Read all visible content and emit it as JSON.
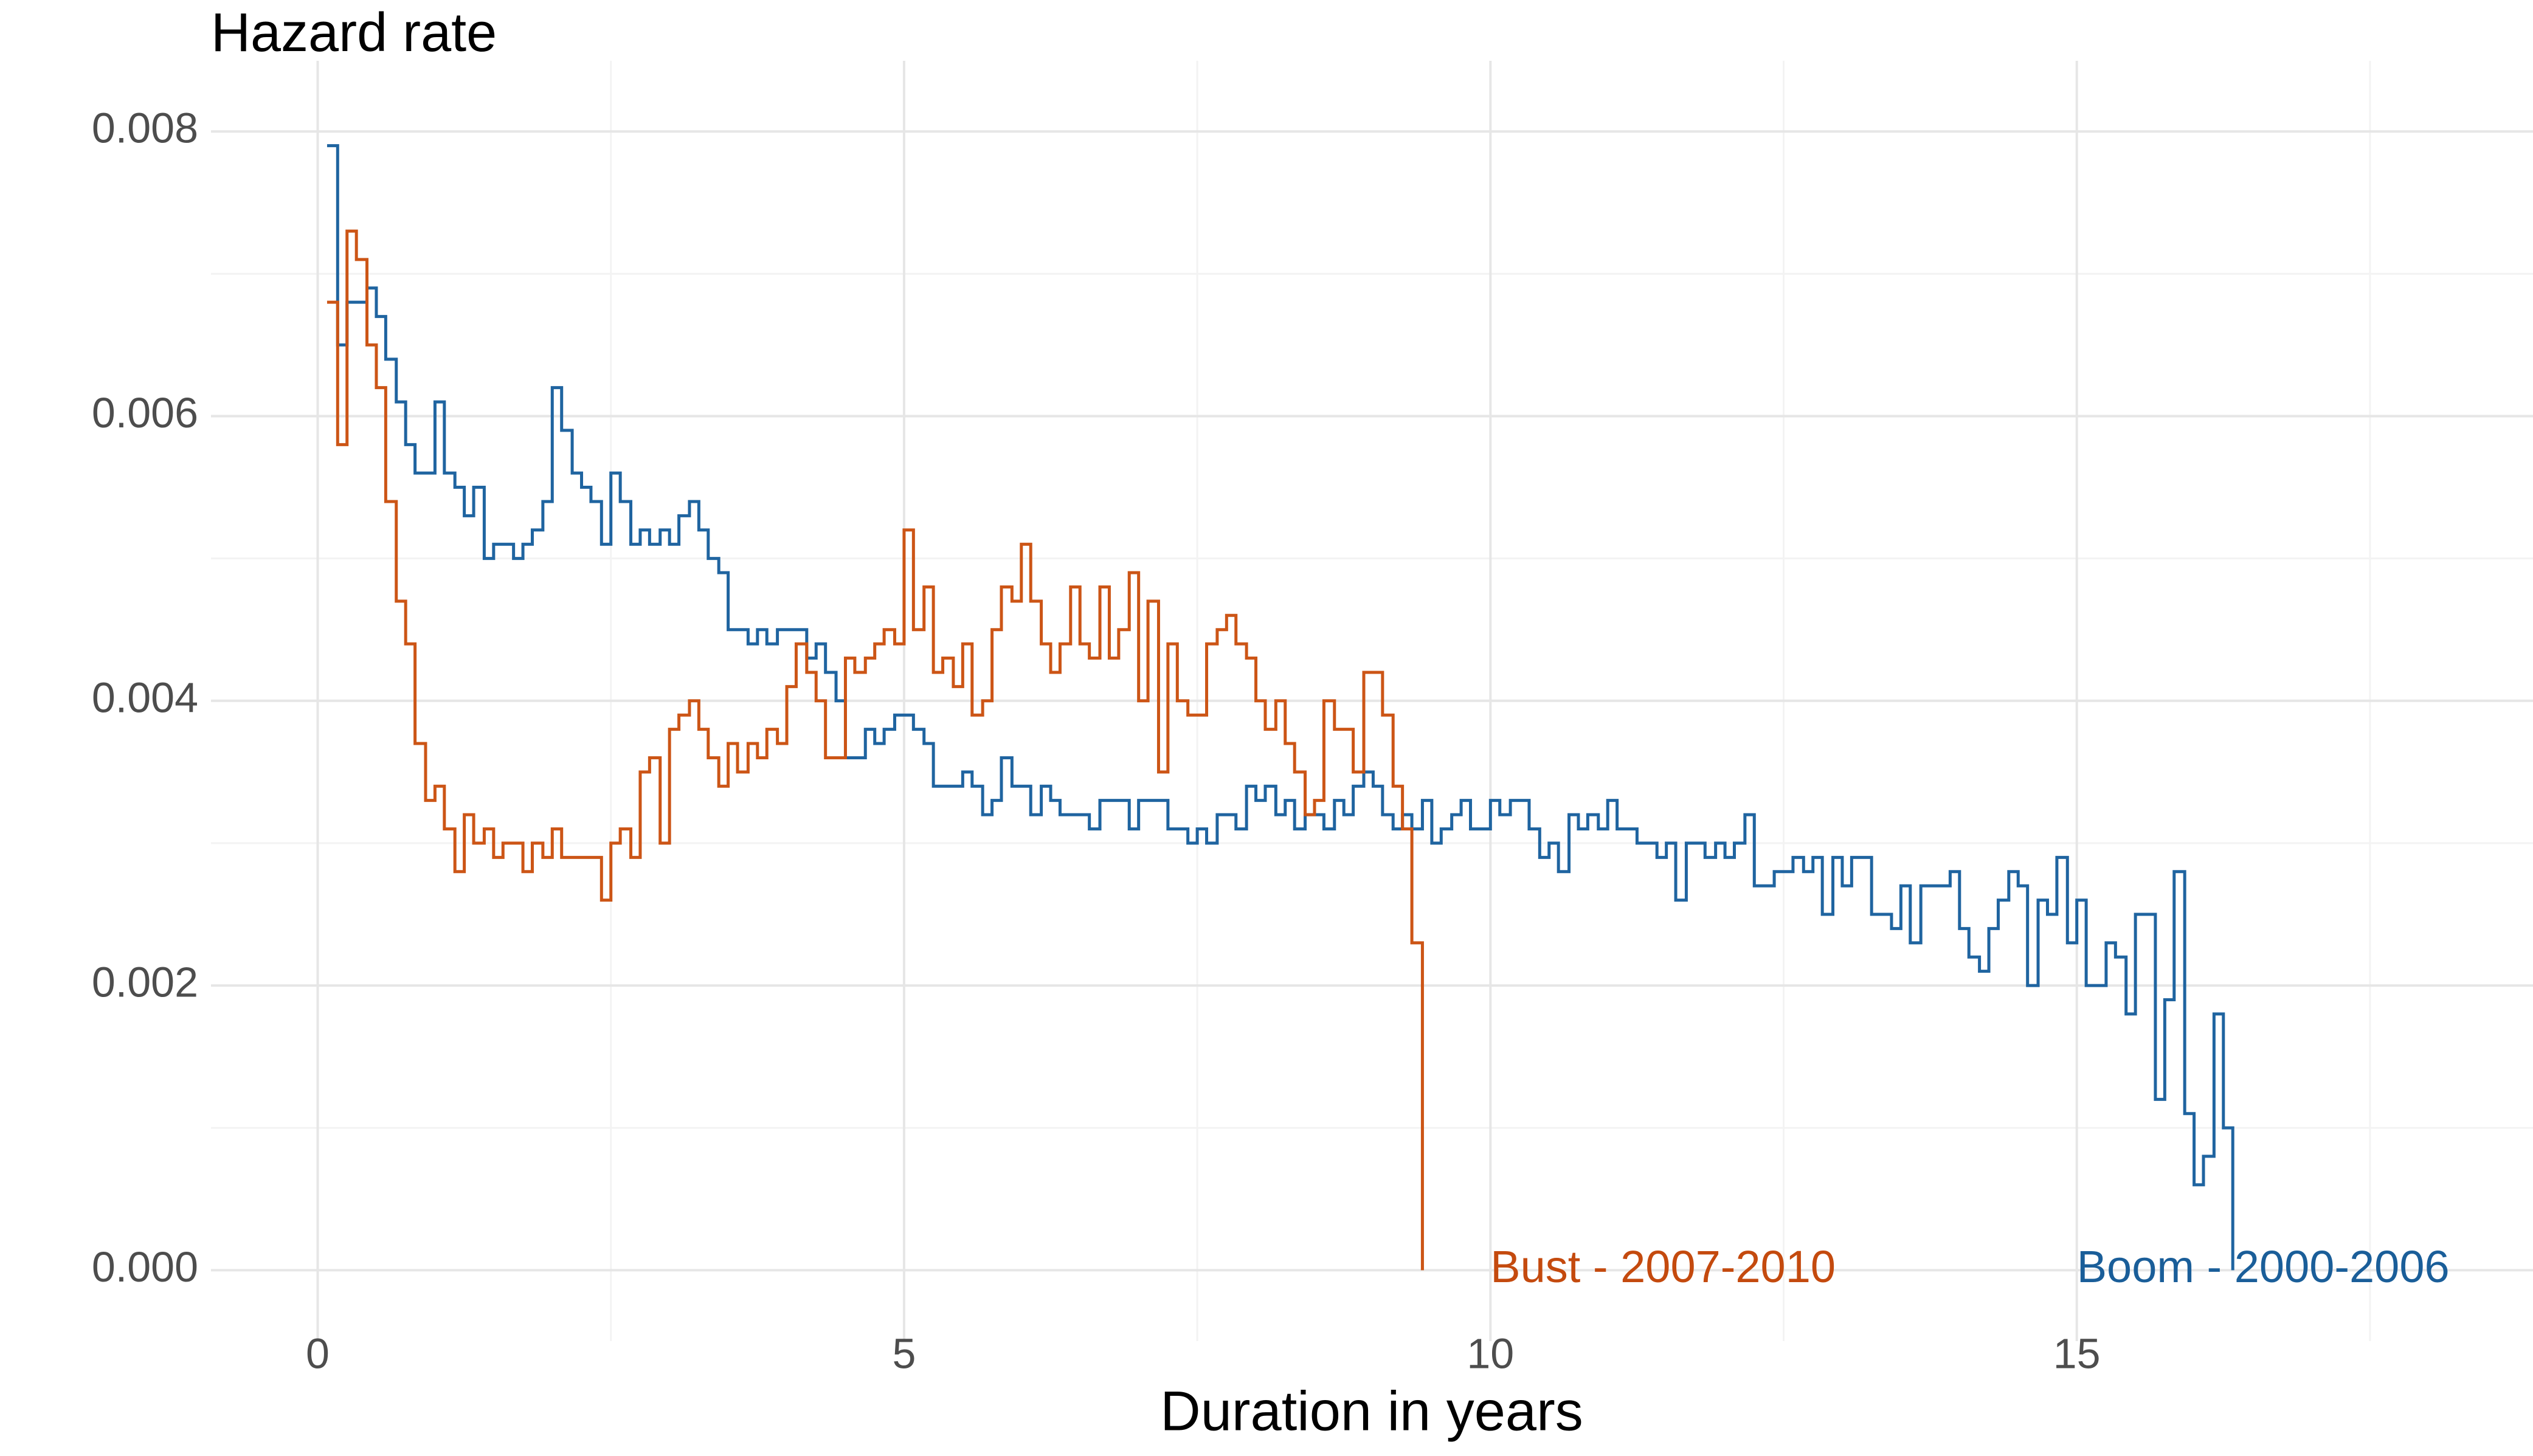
{
  "chart_data": {
    "type": "step",
    "title": "Hazard rate",
    "x_label": "Duration in years",
    "xlim": [
      -0.91,
      18.89
    ],
    "ylim": [
      -0.00037,
      0.00824
    ],
    "xticks": [
      0,
      5,
      10,
      15
    ],
    "yticks": [
      {
        "value": 0,
        "label": "0.000"
      },
      {
        "value": 0.002,
        "label": "0.002"
      },
      {
        "value": 0.004,
        "label": "0.004"
      },
      {
        "value": 0.006,
        "label": "0.006"
      },
      {
        "value": 0.008,
        "label": "0.008"
      }
    ],
    "grid": true,
    "x": [
      0.08,
      0.17,
      0.25,
      0.33,
      0.42,
      0.5,
      0.58,
      0.67,
      0.75,
      0.83,
      0.92,
      1,
      1.08,
      1.17,
      1.25,
      1.33,
      1.42,
      1.5,
      1.58,
      1.67,
      1.75,
      1.83,
      1.92,
      2,
      2.08,
      2.17,
      2.25,
      2.33,
      2.42,
      2.5,
      2.58,
      2.67,
      2.75,
      2.83,
      2.92,
      3,
      3.08,
      3.17,
      3.25,
      3.33,
      3.42,
      3.5,
      3.58,
      3.67,
      3.75,
      3.83,
      3.92,
      4,
      4.08,
      4.17,
      4.25,
      4.33,
      4.42,
      4.5,
      4.58,
      4.67,
      4.75,
      4.83,
      4.92,
      5,
      5.08,
      5.17,
      5.25,
      5.33,
      5.42,
      5.5,
      5.58,
      5.67,
      5.75,
      5.83,
      5.92,
      6,
      6.08,
      6.17,
      6.25,
      6.33,
      6.42,
      6.5,
      6.58,
      6.67,
      6.75,
      6.83,
      6.92,
      7,
      7.08,
      7.17,
      7.25,
      7.33,
      7.42,
      7.5,
      7.58,
      7.67,
      7.75,
      7.83,
      7.92,
      8,
      8.08,
      8.17,
      8.25,
      8.33,
      8.42,
      8.5,
      8.58,
      8.67,
      8.75,
      8.83,
      8.92,
      9,
      9.08,
      9.17,
      9.25,
      9.33,
      9.42,
      9.5,
      9.58,
      9.67,
      9.75,
      9.83,
      9.92,
      10,
      10.08,
      10.17,
      10.25,
      10.33,
      10.42,
      10.5,
      10.58,
      10.67,
      10.75,
      10.83,
      10.92,
      11,
      11.08,
      11.17,
      11.25,
      11.33,
      11.42,
      11.5,
      11.58,
      11.67,
      11.75,
      11.83,
      11.92,
      12,
      12.08,
      12.17,
      12.25,
      12.33,
      12.42,
      12.5,
      12.58,
      12.67,
      12.75,
      12.83,
      12.92,
      13,
      13.08,
      13.17,
      13.25,
      13.33,
      13.42,
      13.5,
      13.58,
      13.67,
      13.75,
      13.83,
      13.92,
      14,
      14.08,
      14.17,
      14.25,
      14.33,
      14.42,
      14.5,
      14.58,
      14.67,
      14.75,
      14.83,
      14.92,
      15,
      15.08,
      15.17,
      15.25,
      15.33,
      15.42,
      15.5,
      15.58,
      15.67,
      15.75,
      15.83,
      15.92,
      16,
      16.08,
      16.17,
      16.25,
      16.33
    ],
    "series": [
      {
        "name": "Boom - 2000-2006",
        "color": "#1f64a0",
        "values": [
          0.0079,
          0.0065,
          0.0068,
          0.0068,
          0.0069,
          0.0067,
          0.0064,
          0.0061,
          0.0058,
          0.0056,
          0.0056,
          0.0061,
          0.0056,
          0.0055,
          0.0053,
          0.0055,
          0.005,
          0.0051,
          0.0051,
          0.005,
          0.0051,
          0.0052,
          0.0054,
          0.0062,
          0.0059,
          0.0056,
          0.0055,
          0.0054,
          0.0051,
          0.0056,
          0.0054,
          0.0051,
          0.0052,
          0.0051,
          0.0052,
          0.0051,
          0.0053,
          0.0054,
          0.0052,
          0.005,
          0.0049,
          0.0045,
          0.0045,
          0.0044,
          0.0045,
          0.0044,
          0.0045,
          0.0045,
          0.0045,
          0.0043,
          0.0044,
          0.0042,
          0.004,
          0.0036,
          0.0036,
          0.0038,
          0.0037,
          0.0038,
          0.0039,
          0.0039,
          0.0038,
          0.0037,
          0.0034,
          0.0034,
          0.0034,
          0.0035,
          0.0034,
          0.0032,
          0.0033,
          0.0036,
          0.0034,
          0.0034,
          0.0032,
          0.0034,
          0.0033,
          0.0032,
          0.0032,
          0.0032,
          0.0031,
          0.0033,
          0.0033,
          0.0033,
          0.0031,
          0.0033,
          0.0033,
          0.0033,
          0.0031,
          0.0031,
          0.003,
          0.0031,
          0.003,
          0.0032,
          0.0032,
          0.0031,
          0.0034,
          0.0033,
          0.0034,
          0.0032,
          0.0033,
          0.0031,
          0.0032,
          0.0032,
          0.0031,
          0.0033,
          0.0032,
          0.0034,
          0.0035,
          0.0034,
          0.0032,
          0.0031,
          0.0032,
          0.0031,
          0.0033,
          0.003,
          0.0031,
          0.0032,
          0.0033,
          0.0031,
          0.0031,
          0.0033,
          0.0032,
          0.0033,
          0.0033,
          0.0031,
          0.0029,
          0.003,
          0.0028,
          0.0032,
          0.0031,
          0.0032,
          0.0031,
          0.0033,
          0.0031,
          0.0031,
          0.003,
          0.003,
          0.0029,
          0.003,
          0.0026,
          0.003,
          0.003,
          0.0029,
          0.003,
          0.0029,
          0.003,
          0.0032,
          0.0027,
          0.0027,
          0.0028,
          0.0028,
          0.0029,
          0.0028,
          0.0029,
          0.0025,
          0.0029,
          0.0027,
          0.0029,
          0.0029,
          0.0025,
          0.0025,
          0.0024,
          0.0027,
          0.0023,
          0.0027,
          0.0027,
          0.0027,
          0.0028,
          0.0024,
          0.0022,
          0.0021,
          0.0024,
          0.0026,
          0.0028,
          0.0027,
          0.002,
          0.0026,
          0.0025,
          0.0029,
          0.0023,
          0.0026,
          0.002,
          0.002,
          0.0023,
          0.0022,
          0.0018,
          0.0025,
          0.0025,
          0.0012,
          0.0019,
          0.0028,
          0.0011,
          0.0006,
          0.0008,
          0.0018,
          0.001,
          0
        ]
      },
      {
        "name": "Bust - 2007-2010",
        "color": "#cc5516",
        "values": [
          0.0068,
          0.0058,
          0.0073,
          0.0071,
          0.0065,
          0.0062,
          0.0054,
          0.0047,
          0.0044,
          0.0037,
          0.0033,
          0.0034,
          0.0031,
          0.0028,
          0.0032,
          0.003,
          0.0031,
          0.0029,
          0.003,
          0.003,
          0.0028,
          0.003,
          0.0029,
          0.0031,
          0.0029,
          0.0029,
          0.0029,
          0.0029,
          0.0026,
          0.003,
          0.0031,
          0.0029,
          0.0035,
          0.0036,
          0.003,
          0.0038,
          0.0039,
          0.004,
          0.0038,
          0.0036,
          0.0034,
          0.0037,
          0.0035,
          0.0037,
          0.0036,
          0.0038,
          0.0037,
          0.0041,
          0.0044,
          0.0042,
          0.004,
          0.0036,
          0.0036,
          0.0043,
          0.0042,
          0.0043,
          0.0044,
          0.0045,
          0.0044,
          0.0052,
          0.0045,
          0.0048,
          0.0042,
          0.0043,
          0.0041,
          0.0044,
          0.0039,
          0.004,
          0.0045,
          0.0048,
          0.0047,
          0.0051,
          0.0047,
          0.0044,
          0.0042,
          0.0044,
          0.0048,
          0.0044,
          0.0043,
          0.0048,
          0.0043,
          0.0045,
          0.0049,
          0.004,
          0.0047,
          0.0035,
          0.0044,
          0.004,
          0.0039,
          0.0039,
          0.0044,
          0.0045,
          0.0046,
          0.0044,
          0.0043,
          0.004,
          0.0038,
          0.004,
          0.0037,
          0.0035,
          0.0032,
          0.0033,
          0.004,
          0.0038,
          0.0038,
          0.0035,
          0.0042,
          0.0042,
          0.0039,
          0.0034,
          0.0031,
          0.0023,
          0,
          null,
          null,
          null,
          null,
          null,
          null,
          null,
          null,
          null,
          null,
          null,
          null,
          null,
          null,
          null,
          null,
          null,
          null,
          null,
          null,
          null,
          null,
          null,
          null,
          null,
          null,
          null,
          null,
          null,
          null,
          null,
          null,
          null,
          null,
          null,
          null,
          null,
          null,
          null,
          null,
          null,
          null,
          null,
          null,
          null,
          null,
          null,
          null,
          null,
          null,
          null,
          null,
          null,
          null,
          null,
          null,
          null,
          null,
          null,
          null,
          null,
          null,
          null,
          null,
          null,
          null,
          null,
          null,
          null,
          null,
          null,
          null,
          null,
          null,
          null,
          null,
          null,
          null,
          null,
          null,
          null,
          null,
          null
        ]
      }
    ],
    "annotations": [
      {
        "text": "Bust - 2007-2010",
        "x": 10,
        "y": 0,
        "color": "#c44a0e"
      },
      {
        "text": "Boom - 2000-2006",
        "x": 15,
        "y": 0,
        "color": "#1a5e99"
      }
    ]
  }
}
